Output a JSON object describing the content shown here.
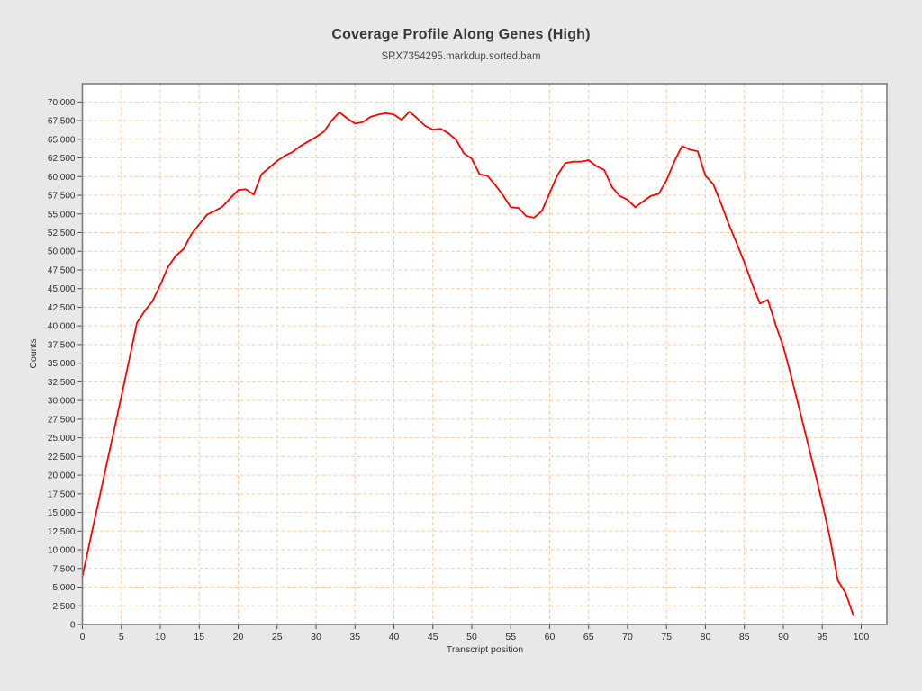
{
  "page": {
    "background_color": "#e8e8e8",
    "plot_background_color": "#ffffff",
    "frame_color": "#7d7d7d",
    "grid_color": "#f7c9a2",
    "tick_color": "#4a4a4a",
    "tick_label_color": "#2e2e2e"
  },
  "chart": {
    "title": "Coverage Profile Along Genes (High)",
    "subtitle": "SRX7354295.markdup.sorted.bam"
  },
  "chart_data": {
    "type": "line",
    "title": "Coverage Profile Along Genes (High)",
    "subtitle": "SRX7354295.markdup.sorted.bam",
    "xlabel": "Transcript position",
    "ylabel": "Counts",
    "xlim": [
      0,
      103.3
    ],
    "ylim": [
      0,
      72450
    ],
    "grid": true,
    "legend": "none",
    "x_ticks": [
      0,
      5,
      10,
      15,
      20,
      25,
      30,
      35,
      40,
      45,
      50,
      55,
      60,
      65,
      70,
      75,
      80,
      85,
      90,
      95,
      100
    ],
    "y_ticks": [
      0,
      2500,
      5000,
      7500,
      10000,
      12500,
      15000,
      17500,
      20000,
      22500,
      25000,
      27500,
      30000,
      32500,
      35000,
      37500,
      40000,
      42500,
      45000,
      47500,
      50000,
      52500,
      55000,
      57500,
      60000,
      62500,
      65000,
      67500,
      70000
    ],
    "series": [
      {
        "name": "coverage",
        "color": "#ff0000",
        "x": [
          0,
          1,
          2,
          3,
          4,
          5,
          6,
          7,
          8,
          9,
          10,
          11,
          12,
          13,
          14,
          15,
          16,
          17,
          18,
          19,
          20,
          21,
          22,
          23,
          24,
          25,
          26,
          27,
          28,
          29,
          30,
          31,
          32,
          33,
          34,
          35,
          36,
          37,
          38,
          39,
          40,
          41,
          42,
          43,
          44,
          45,
          46,
          47,
          48,
          49,
          50,
          51,
          52,
          53,
          54,
          55,
          56,
          57,
          58,
          59,
          60,
          61,
          62,
          63,
          64,
          65,
          66,
          67,
          68,
          69,
          70,
          71,
          72,
          73,
          74,
          75,
          76,
          77,
          78,
          79,
          80,
          81,
          82,
          83,
          84,
          85,
          86,
          87,
          88,
          89,
          90,
          91,
          92,
          93,
          94,
          95,
          96,
          97,
          98,
          99
        ],
        "values": [
          6400,
          11300,
          16100,
          20900,
          25700,
          30500,
          35400,
          40400,
          42000,
          43300,
          45500,
          47900,
          49400,
          50300,
          52300,
          53600,
          54900,
          55400,
          56000,
          57100,
          58200,
          58300,
          57600,
          60300,
          61200,
          62100,
          62800,
          63300,
          64100,
          64700,
          65300,
          66000,
          67500,
          68600,
          67800,
          67100,
          67300,
          68000,
          68300,
          68500,
          68300,
          67600,
          68700,
          67800,
          66800,
          66300,
          66400,
          65800,
          64900,
          63100,
          62400,
          60300,
          60100,
          58900,
          57500,
          55900,
          55800,
          54700,
          54500,
          55400,
          57800,
          60200,
          61800,
          62000,
          62000,
          62200,
          61400,
          60900,
          58600,
          57400,
          56900,
          55900,
          56700,
          57400,
          57700,
          59500,
          62000,
          64100,
          63600,
          63400,
          60100,
          59000,
          56400,
          53600,
          51100,
          48500,
          45600,
          43000,
          43500,
          40200,
          37200,
          33300,
          29100,
          24900,
          20600,
          16300,
          11500,
          5900,
          4200,
          1200
        ]
      }
    ]
  }
}
